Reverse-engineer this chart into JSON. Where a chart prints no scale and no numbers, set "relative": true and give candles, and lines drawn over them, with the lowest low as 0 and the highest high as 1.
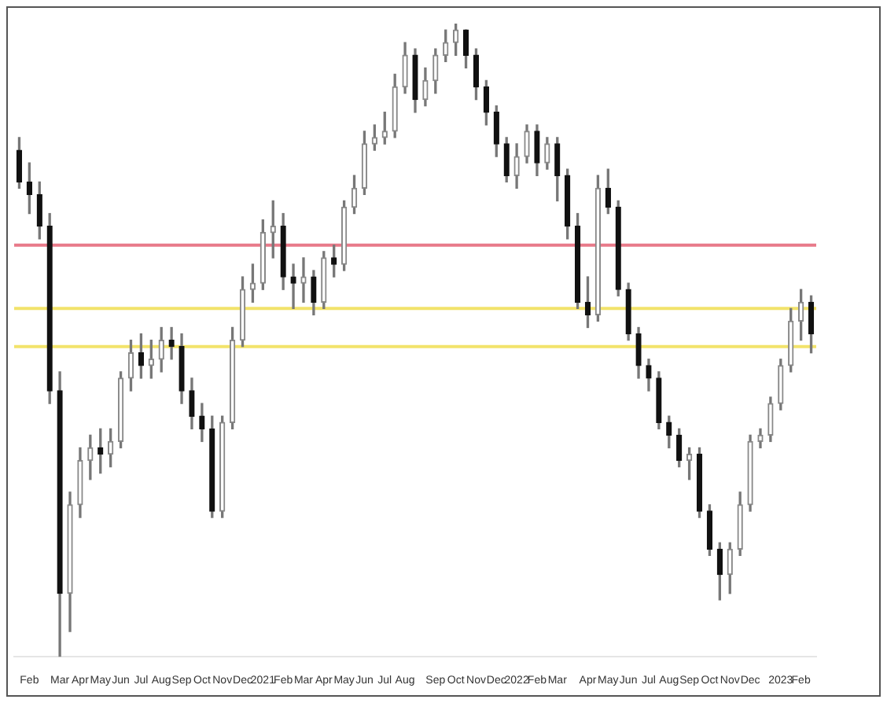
{
  "chart_data": {
    "type": "candlestick",
    "relative": true,
    "grid": false,
    "legend": false,
    "categories": [
      null,
      "Feb",
      null,
      null,
      "Mar",
      null,
      "Apr",
      null,
      "May",
      null,
      "Jun",
      null,
      "Jul",
      null,
      "Aug",
      null,
      "Sep",
      null,
      "Oct",
      null,
      "Nov",
      null,
      "Dec",
      null,
      "2021",
      null,
      "Feb",
      null,
      "Mar",
      null,
      "Apr",
      null,
      "May",
      null,
      "Jun",
      null,
      "Jul",
      null,
      "Aug",
      null,
      null,
      "Sep",
      null,
      "Oct",
      null,
      "Nov",
      null,
      "Dec",
      null,
      "2022",
      null,
      "Feb",
      null,
      "Mar",
      null,
      null,
      "Apr",
      null,
      "May",
      null,
      "Jun",
      null,
      "Jul",
      null,
      "Aug",
      null,
      "Sep",
      null,
      "Oct",
      null,
      "Nov",
      null,
      "Dec",
      null,
      null,
      "2023",
      null,
      "Feb",
      null
    ],
    "ohlc": [
      [
        0.8,
        0.82,
        0.74,
        0.75
      ],
      [
        0.75,
        0.78,
        0.7,
        0.73
      ],
      [
        0.73,
        0.75,
        0.66,
        0.68
      ],
      [
        0.68,
        0.7,
        0.4,
        0.42
      ],
      [
        0.42,
        0.45,
        0.0,
        0.1
      ],
      [
        0.1,
        0.26,
        0.04,
        0.24
      ],
      [
        0.24,
        0.33,
        0.22,
        0.31
      ],
      [
        0.31,
        0.35,
        0.28,
        0.33
      ],
      [
        0.33,
        0.36,
        0.29,
        0.32
      ],
      [
        0.32,
        0.36,
        0.3,
        0.34
      ],
      [
        0.34,
        0.45,
        0.33,
        0.44
      ],
      [
        0.44,
        0.5,
        0.42,
        0.48
      ],
      [
        0.48,
        0.51,
        0.44,
        0.46
      ],
      [
        0.46,
        0.5,
        0.44,
        0.47
      ],
      [
        0.47,
        0.52,
        0.45,
        0.5
      ],
      [
        0.5,
        0.52,
        0.47,
        0.49
      ],
      [
        0.49,
        0.51,
        0.4,
        0.42
      ],
      [
        0.42,
        0.44,
        0.36,
        0.38
      ],
      [
        0.38,
        0.4,
        0.34,
        0.36
      ],
      [
        0.36,
        0.38,
        0.22,
        0.23
      ],
      [
        0.23,
        0.38,
        0.22,
        0.37
      ],
      [
        0.37,
        0.52,
        0.36,
        0.5
      ],
      [
        0.5,
        0.6,
        0.49,
        0.58
      ],
      [
        0.58,
        0.62,
        0.56,
        0.59
      ],
      [
        0.59,
        0.69,
        0.58,
        0.67
      ],
      [
        0.67,
        0.72,
        0.63,
        0.68
      ],
      [
        0.68,
        0.7,
        0.58,
        0.6
      ],
      [
        0.6,
        0.62,
        0.55,
        0.59
      ],
      [
        0.59,
        0.63,
        0.56,
        0.6
      ],
      [
        0.6,
        0.61,
        0.54,
        0.56
      ],
      [
        0.56,
        0.64,
        0.55,
        0.63
      ],
      [
        0.63,
        0.65,
        0.6,
        0.62
      ],
      [
        0.62,
        0.72,
        0.61,
        0.71
      ],
      [
        0.71,
        0.76,
        0.7,
        0.74
      ],
      [
        0.74,
        0.83,
        0.73,
        0.81
      ],
      [
        0.81,
        0.84,
        0.8,
        0.82
      ],
      [
        0.82,
        0.86,
        0.81,
        0.83
      ],
      [
        0.83,
        0.92,
        0.82,
        0.9
      ],
      [
        0.9,
        0.97,
        0.89,
        0.95
      ],
      [
        0.95,
        0.96,
        0.86,
        0.88
      ],
      [
        0.88,
        0.93,
        0.87,
        0.91
      ],
      [
        0.91,
        0.96,
        0.89,
        0.95
      ],
      [
        0.95,
        0.99,
        0.94,
        0.97
      ],
      [
        0.97,
        1.0,
        0.95,
        0.99
      ],
      [
        0.99,
        0.99,
        0.93,
        0.95
      ],
      [
        0.95,
        0.96,
        0.88,
        0.9
      ],
      [
        0.9,
        0.91,
        0.84,
        0.86
      ],
      [
        0.86,
        0.87,
        0.79,
        0.81
      ],
      [
        0.81,
        0.82,
        0.75,
        0.76
      ],
      [
        0.76,
        0.81,
        0.74,
        0.79
      ],
      [
        0.79,
        0.84,
        0.78,
        0.83
      ],
      [
        0.83,
        0.84,
        0.76,
        0.78
      ],
      [
        0.78,
        0.82,
        0.77,
        0.81
      ],
      [
        0.81,
        0.82,
        0.72,
        0.76
      ],
      [
        0.76,
        0.77,
        0.66,
        0.68
      ],
      [
        0.68,
        0.7,
        0.55,
        0.56
      ],
      [
        0.56,
        0.6,
        0.52,
        0.54
      ],
      [
        0.54,
        0.76,
        0.53,
        0.74
      ],
      [
        0.74,
        0.77,
        0.7,
        0.71
      ],
      [
        0.71,
        0.72,
        0.57,
        0.58
      ],
      [
        0.58,
        0.59,
        0.5,
        0.51
      ],
      [
        0.51,
        0.52,
        0.44,
        0.46
      ],
      [
        0.46,
        0.47,
        0.42,
        0.44
      ],
      [
        0.44,
        0.45,
        0.36,
        0.37
      ],
      [
        0.37,
        0.38,
        0.33,
        0.35
      ],
      [
        0.35,
        0.36,
        0.3,
        0.31
      ],
      [
        0.31,
        0.33,
        0.28,
        0.32
      ],
      [
        0.32,
        0.33,
        0.22,
        0.23
      ],
      [
        0.23,
        0.24,
        0.16,
        0.17
      ],
      [
        0.17,
        0.18,
        0.09,
        0.13
      ],
      [
        0.13,
        0.18,
        0.1,
        0.17
      ],
      [
        0.17,
        0.26,
        0.16,
        0.24
      ],
      [
        0.24,
        0.35,
        0.23,
        0.34
      ],
      [
        0.34,
        0.36,
        0.33,
        0.35
      ],
      [
        0.35,
        0.41,
        0.34,
        0.4
      ],
      [
        0.4,
        0.47,
        0.39,
        0.46
      ],
      [
        0.46,
        0.55,
        0.45,
        0.53
      ],
      [
        0.53,
        0.58,
        0.5,
        0.56
      ],
      [
        0.56,
        0.57,
        0.48,
        0.51
      ]
    ],
    "ref_lines": [
      {
        "axis": "y",
        "value": 0.65,
        "color": "#e87a8a"
      },
      {
        "axis": "y",
        "value": 0.55,
        "color": "#f2e36b"
      },
      {
        "axis": "y",
        "value": 0.49,
        "color": "#f2e36b"
      }
    ]
  }
}
